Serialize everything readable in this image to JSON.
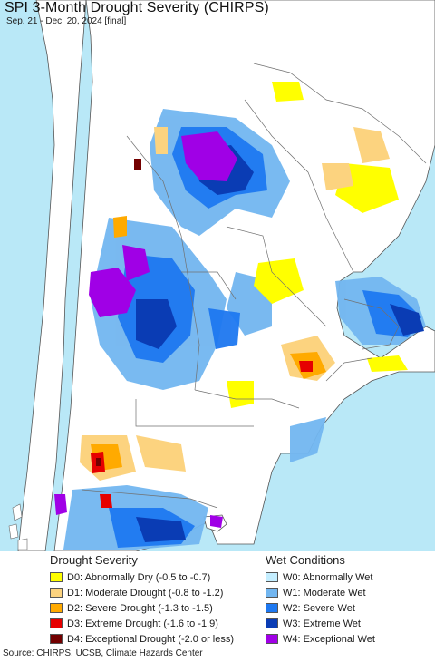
{
  "title": "SPI 3-Month Drought Severity (CHIRPS)",
  "subtitle": "Sep. 21 - Dec. 20, 2024 [final]",
  "colors": {
    "ocean": "#b9e8f7",
    "land": "#ffffff",
    "border": "#6e6e6e"
  },
  "legend": {
    "drought": {
      "title": "Drought Severity",
      "items": [
        {
          "label": "D0: Abnormally Dry (-0.5 to -0.7)",
          "color": "#ffff00"
        },
        {
          "label": "D1: Moderate Drought (-0.8 to -1.2)",
          "color": "#fcd37f"
        },
        {
          "label": "D2: Severe Drought (-1.3 to -1.5)",
          "color": "#ffaa00"
        },
        {
          "label": "D3: Extreme Drought (-1.6 to -1.9)",
          "color": "#e60000"
        },
        {
          "label": "D4: Exceptional Drought (-2.0 or less)",
          "color": "#730000"
        }
      ]
    },
    "wet": {
      "title": "Wet Conditions",
      "items": [
        {
          "label": "W0: Abnormally Wet",
          "color": "#c4eeff"
        },
        {
          "label": "W1: Moderate Wet",
          "color": "#72b6f0"
        },
        {
          "label": "W2: Severe Wet",
          "color": "#1e78f0"
        },
        {
          "label": "W3: Extreme Wet",
          "color": "#0a3cb4"
        },
        {
          "label": "W4: Exceptional Wet",
          "color": "#a000e6"
        }
      ]
    }
  },
  "source": "Source: CHIRPS, UCSB, Climate Hazards Center"
}
